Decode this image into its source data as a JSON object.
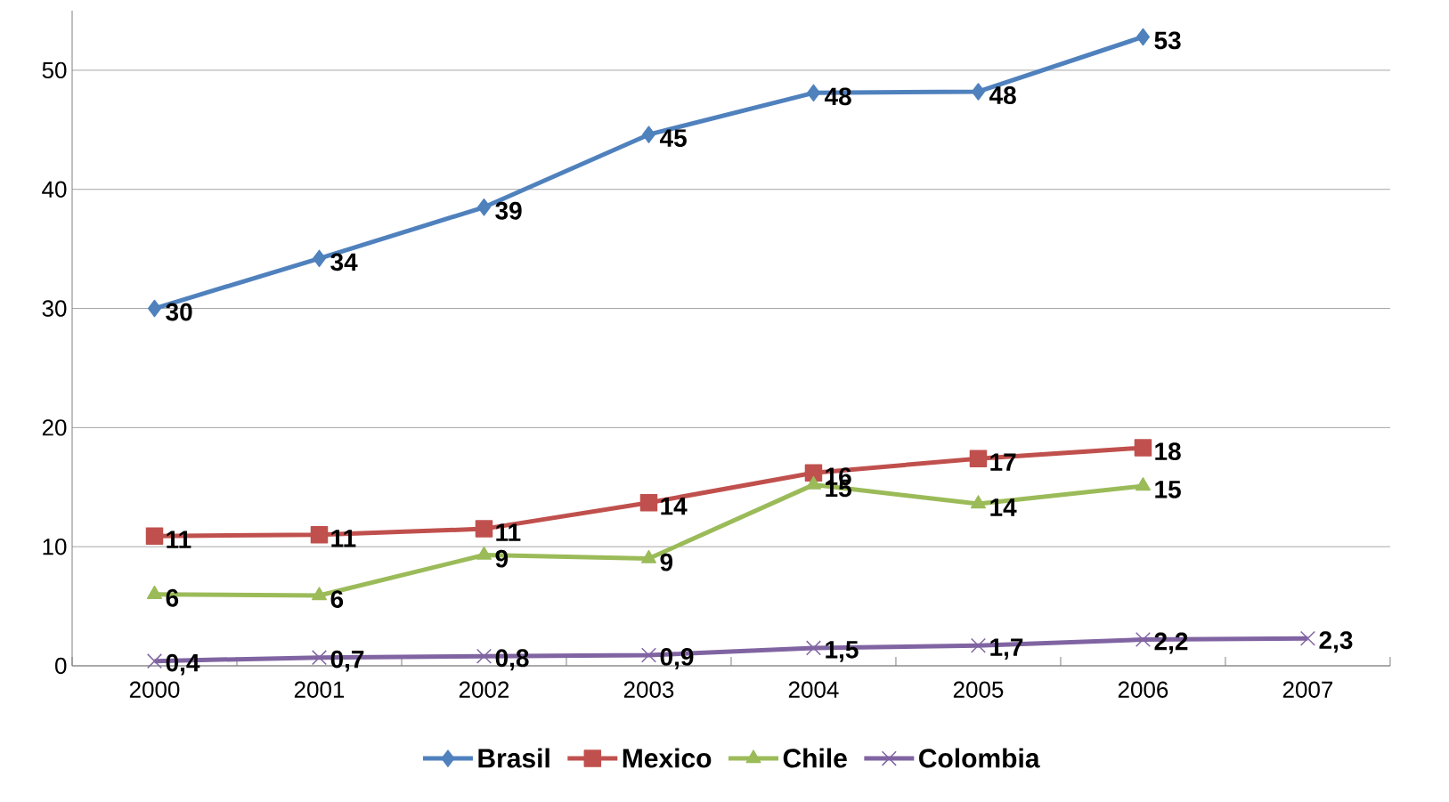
{
  "chart_data": {
    "type": "line",
    "categories": [
      "2000",
      "2001",
      "2002",
      "2003",
      "2004",
      "2005",
      "2006",
      "2007"
    ],
    "ylim": [
      0,
      55
    ],
    "yticks": [
      0,
      10,
      20,
      30,
      40,
      50
    ],
    "grid": "y",
    "legend": "bottom",
    "series": [
      {
        "name": "Brasil",
        "color": "#4f81bd",
        "marker": "diamond",
        "values": [
          30.0,
          34.2,
          38.5,
          44.6,
          48.1,
          48.2,
          52.8,
          null
        ],
        "value_labels": [
          "30",
          "34",
          "39",
          "45",
          "48",
          "48",
          "53",
          null
        ]
      },
      {
        "name": "Mexico",
        "color": "#c0504d",
        "marker": "square",
        "values": [
          10.9,
          11.0,
          11.5,
          13.7,
          16.2,
          17.4,
          18.3,
          null
        ],
        "value_labels": [
          "11",
          "11",
          "11",
          "14",
          "16",
          "17",
          "18",
          null
        ]
      },
      {
        "name": "Chile",
        "color": "#9bbb59",
        "marker": "triangle",
        "values": [
          6.0,
          5.9,
          9.3,
          9.0,
          15.2,
          13.6,
          15.1,
          null
        ],
        "value_labels": [
          "6",
          "6",
          "9",
          "9",
          "15",
          "14",
          "15",
          null
        ]
      },
      {
        "name": "Colombia",
        "color": "#8064a2",
        "marker": "cross",
        "values": [
          0.4,
          0.7,
          0.8,
          0.9,
          1.5,
          1.7,
          2.2,
          2.3
        ],
        "value_labels": [
          "0,4",
          "0,7",
          "0,8",
          "0,9",
          "1,5",
          "1,7",
          "2,2",
          "2,3"
        ]
      }
    ]
  }
}
